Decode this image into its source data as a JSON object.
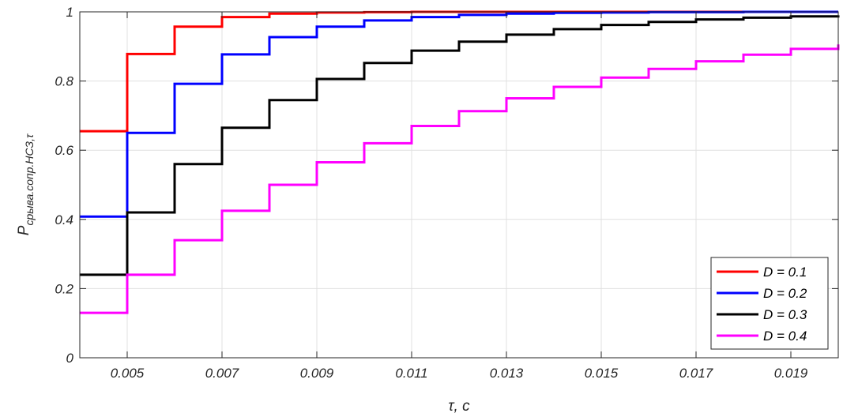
{
  "chart_data": {
    "type": "line",
    "step": true,
    "xlabel_main": "τ",
    "xlabel_rest": ", с",
    "ylabel_main": "P",
    "ylabel_sub": "срыва.сопр.НСЗ,τ",
    "xlim": [
      0.004,
      0.02
    ],
    "ylim": [
      0,
      1
    ],
    "xticks": [
      0.005,
      0.007,
      0.009,
      0.011,
      0.013,
      0.015,
      0.017,
      0.019
    ],
    "xtick_labels": [
      "0.005",
      "0.007",
      "0.009",
      "0.011",
      "0.013",
      "0.015",
      "0.017",
      "0.019"
    ],
    "yticks": [
      0,
      0.2,
      0.4,
      0.6,
      0.8,
      1
    ],
    "ytick_labels": [
      "0",
      "0.2",
      "0.4",
      "0.6",
      "0.8",
      "1"
    ],
    "grid": true,
    "legend_position": "bottom-right",
    "x": [
      0.004,
      0.005,
      0.006,
      0.007,
      0.008,
      0.009,
      0.01,
      0.011,
      0.012,
      0.013,
      0.014,
      0.015,
      0.016,
      0.017,
      0.018,
      0.019,
      0.02
    ],
    "series": [
      {
        "name": "D = 0.1",
        "color": "#ff0000",
        "values": [
          0.655,
          0.878,
          0.957,
          0.985,
          0.995,
          0.998,
          0.999,
          1.0,
          1.0,
          1.0,
          1.0,
          1.0,
          1.0,
          1.0,
          1.0,
          1.0,
          1.0
        ]
      },
      {
        "name": "D = 0.2",
        "color": "#0000ff",
        "values": [
          0.408,
          0.65,
          0.792,
          0.877,
          0.927,
          0.957,
          0.975,
          0.985,
          0.991,
          0.995,
          0.997,
          0.998,
          0.999,
          0.999,
          1.0,
          1.0,
          1.0
        ]
      },
      {
        "name": "D = 0.3",
        "color": "#000000",
        "values": [
          0.24,
          0.42,
          0.56,
          0.665,
          0.745,
          0.806,
          0.852,
          0.888,
          0.914,
          0.934,
          0.95,
          0.962,
          0.971,
          0.978,
          0.983,
          0.987,
          0.99
        ]
      },
      {
        "name": "D = 0.4",
        "color": "#ff00ff",
        "values": [
          0.13,
          0.24,
          0.34,
          0.425,
          0.5,
          0.565,
          0.62,
          0.67,
          0.713,
          0.75,
          0.783,
          0.81,
          0.835,
          0.857,
          0.876,
          0.893,
          0.906
        ]
      }
    ]
  }
}
